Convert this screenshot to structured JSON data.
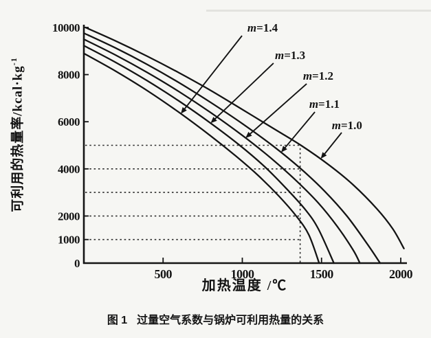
{
  "figure": {
    "caption_label": "图 1",
    "caption_text": "过量空气系数与锅炉可利用热量的关系"
  },
  "chart_data": {
    "type": "line",
    "title": "",
    "xlabel": "加热温度 /℃",
    "ylabel": "可利用的热量率/kcal·kg⁻¹",
    "ylabel_main": "可利用的热量率/kcal·kg",
    "ylabel_superscript": "-1",
    "xlim": [
      0,
      2000
    ],
    "ylim": [
      0,
      10000
    ],
    "x_ticks": [
      500,
      1000,
      1500,
      2000
    ],
    "y_ticks": [
      10000,
      8000,
      6000,
      4000,
      2000,
      1000,
      0
    ],
    "grid": false,
    "legend_position": "none",
    "line_color": "#141414",
    "reference_lines": {
      "style": "dotted",
      "horizontal_y_values": [
        5000,
        4000,
        3000,
        2000,
        1000
      ],
      "horizontal_extent_x": 1365,
      "vertical_x_value": 1365,
      "vertical_extent_y": 5000
    },
    "series": [
      {
        "name": "m=1.0",
        "points": [
          [
            10,
            10000
          ],
          [
            200,
            9430
          ],
          [
            400,
            8780
          ],
          [
            600,
            8080
          ],
          [
            800,
            7330
          ],
          [
            1000,
            6520
          ],
          [
            1200,
            5700
          ],
          [
            1370,
            5000
          ],
          [
            1550,
            4150
          ],
          [
            1700,
            3320
          ],
          [
            1850,
            2300
          ],
          [
            1950,
            1450
          ],
          [
            2020,
            620
          ]
        ]
      },
      {
        "name": "m=1.1",
        "points": [
          [
            0,
            9760
          ],
          [
            200,
            9130
          ],
          [
            400,
            8430
          ],
          [
            600,
            7660
          ],
          [
            800,
            6820
          ],
          [
            1000,
            5920
          ],
          [
            1200,
            4940
          ],
          [
            1370,
            4000
          ],
          [
            1520,
            3050
          ],
          [
            1660,
            2000
          ],
          [
            1790,
            800
          ],
          [
            1870,
            0
          ]
        ]
      },
      {
        "name": "m=1.2",
        "points": [
          [
            0,
            9500
          ],
          [
            200,
            8830
          ],
          [
            400,
            8090
          ],
          [
            600,
            7280
          ],
          [
            800,
            6390
          ],
          [
            1000,
            5420
          ],
          [
            1180,
            4460
          ],
          [
            1340,
            3500
          ],
          [
            1480,
            2550
          ],
          [
            1600,
            1550
          ],
          [
            1700,
            550
          ],
          [
            1742,
            0
          ]
        ]
      },
      {
        "name": "m=1.3",
        "points": [
          [
            0,
            9230
          ],
          [
            200,
            8520
          ],
          [
            400,
            7740
          ],
          [
            600,
            6880
          ],
          [
            800,
            5940
          ],
          [
            980,
            5020
          ],
          [
            1140,
            4100
          ],
          [
            1280,
            3150
          ],
          [
            1400,
            2250
          ],
          [
            1480,
            1450
          ],
          [
            1578,
            0
          ]
        ]
      },
      {
        "name": "m=1.4",
        "points": [
          [
            0,
            8900
          ],
          [
            200,
            8150
          ],
          [
            400,
            7320
          ],
          [
            600,
            6400
          ],
          [
            800,
            5400
          ],
          [
            960,
            4540
          ],
          [
            1100,
            3720
          ],
          [
            1230,
            2850
          ],
          [
            1340,
            2000
          ],
          [
            1420,
            1200
          ],
          [
            1485,
            0
          ]
        ]
      }
    ],
    "annotations": [
      {
        "text": "m=1.4",
        "label_at": [
          1128,
          10000
        ],
        "arrow_from": [
          998,
          9650
        ],
        "arrow_to": [
          612,
          6340
        ]
      },
      {
        "text": "m=1.3",
        "label_at": [
          1302,
          8834
        ],
        "arrow_from": [
          1197,
          8484
        ],
        "arrow_to": [
          800,
          5940
        ]
      },
      {
        "text": "m=1.2",
        "label_at": [
          1479,
          7959
        ],
        "arrow_from": [
          1406,
          7609
        ],
        "arrow_to": [
          1020,
          5310
        ]
      },
      {
        "text": "m=1.1",
        "label_at": [
          1518,
          6764
        ],
        "arrow_from": [
          1458,
          6414
        ],
        "arrow_to": [
          1245,
          4700
        ]
      },
      {
        "text": "m=1.0",
        "label_at": [
          1661,
          5860
        ],
        "arrow_from": [
          1627,
          5539
        ],
        "arrow_to": [
          1495,
          4430
        ]
      }
    ]
  }
}
